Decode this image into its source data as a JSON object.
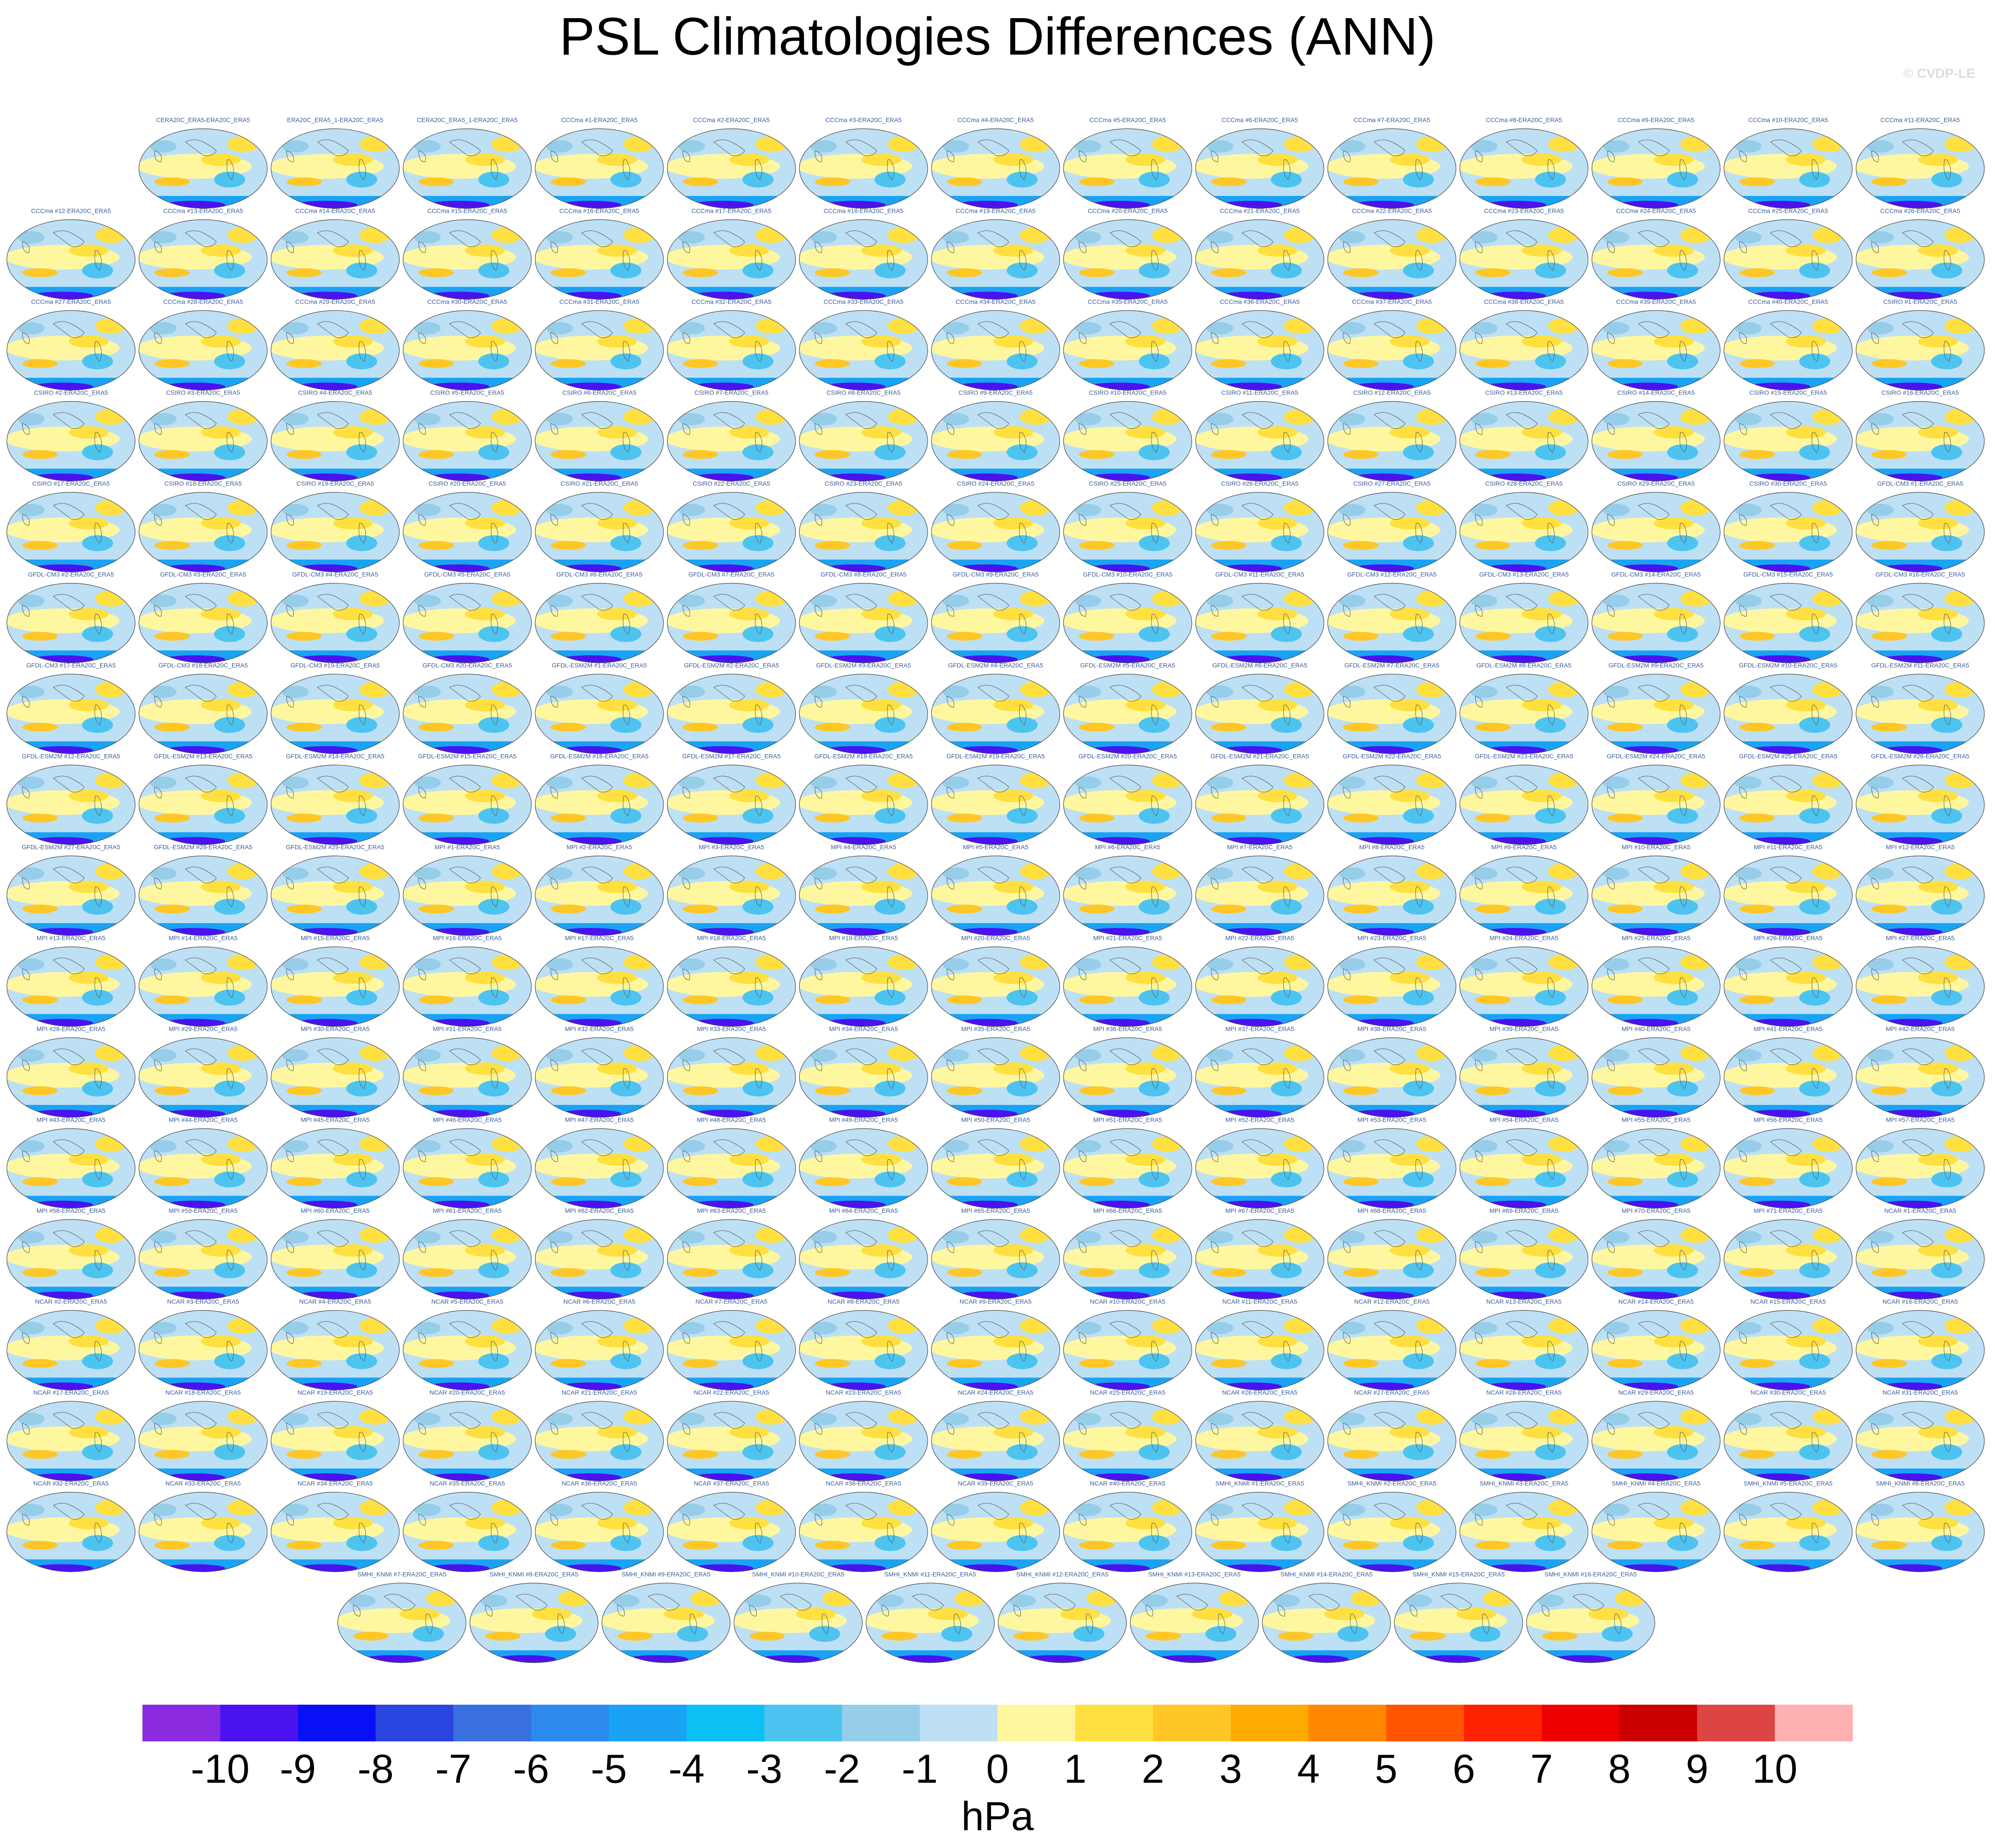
{
  "title": "PSL Climatologies Differences (ANN)",
  "watermark": "© CVDP-LE",
  "panels": [
    [
      "CERA20C_ERA5-ERA20C_ERA5",
      "ERA20C_ERA5_1-ERA20C_ERA5",
      "CERA20C_ERA5_1-ERA20C_ERA5",
      "CCCma #1-ERA20C_ERA5",
      "CCCma #2-ERA20C_ERA5",
      "CCCma #3-ERA20C_ERA5",
      "CCCma #4-ERA20C_ERA5",
      "CCCma #5-ERA20C_ERA5",
      "CCCma #6-ERA20C_ERA5",
      "CCCma #7-ERA20C_ERA5",
      "CCCma #8-ERA20C_ERA5",
      "CCCma #9-ERA20C_ERA5",
      "CCCma #10-ERA20C_ERA5",
      "CCCma #11-ERA20C_ERA5"
    ],
    [
      "CCCma #12-ERA20C_ERA5",
      "CCCma #13-ERA20C_ERA5",
      "CCCma #14-ERA20C_ERA5",
      "CCCma #15-ERA20C_ERA5",
      "CCCma #16-ERA20C_ERA5",
      "CCCma #17-ERA20C_ERA5",
      "CCCma #18-ERA20C_ERA5",
      "CCCma #19-ERA20C_ERA5",
      "CCCma #20-ERA20C_ERA5",
      "CCCma #21-ERA20C_ERA5",
      "CCCma #22-ERA20C_ERA5",
      "CCCma #23-ERA20C_ERA5",
      "CCCma #24-ERA20C_ERA5",
      "CCCma #25-ERA20C_ERA5",
      "CCCma #26-ERA20C_ERA5"
    ],
    [
      "CCCma #27-ERA20C_ERA5",
      "CCCma #28-ERA20C_ERA5",
      "CCCma #29-ERA20C_ERA5",
      "CCCma #30-ERA20C_ERA5",
      "CCCma #31-ERA20C_ERA5",
      "CCCma #32-ERA20C_ERA5",
      "CCCma #33-ERA20C_ERA5",
      "CCCma #34-ERA20C_ERA5",
      "CCCma #35-ERA20C_ERA5",
      "CCCma #36-ERA20C_ERA5",
      "CCCma #37-ERA20C_ERA5",
      "CCCma #38-ERA20C_ERA5",
      "CCCma #39-ERA20C_ERA5",
      "CCCma #40-ERA20C_ERA5",
      "CSIRO #1-ERA20C_ERA5"
    ],
    [
      "CSIRO #2-ERA20C_ERA5",
      "CSIRO #3-ERA20C_ERA5",
      "CSIRO #4-ERA20C_ERA5",
      "CSIRO #5-ERA20C_ERA5",
      "CSIRO #6-ERA20C_ERA5",
      "CSIRO #7-ERA20C_ERA5",
      "CSIRO #8-ERA20C_ERA5",
      "CSIRO #9-ERA20C_ERA5",
      "CSIRO #10-ERA20C_ERA5",
      "CSIRO #11-ERA20C_ERA5",
      "CSIRO #12-ERA20C_ERA5",
      "CSIRO #13-ERA20C_ERA5",
      "CSIRO #14-ERA20C_ERA5",
      "CSIRO #15-ERA20C_ERA5",
      "CSIRO #16-ERA20C_ERA5"
    ],
    [
      "CSIRO #17-ERA20C_ERA5",
      "CSIRO #18-ERA20C_ERA5",
      "CSIRO #19-ERA20C_ERA5",
      "CSIRO #20-ERA20C_ERA5",
      "CSIRO #21-ERA20C_ERA5",
      "CSIRO #22-ERA20C_ERA5",
      "CSIRO #23-ERA20C_ERA5",
      "CSIRO #24-ERA20C_ERA5",
      "CSIRO #25-ERA20C_ERA5",
      "CSIRO #26-ERA20C_ERA5",
      "CSIRO #27-ERA20C_ERA5",
      "CSIRO #28-ERA20C_ERA5",
      "CSIRO #29-ERA20C_ERA5",
      "CSIRO #30-ERA20C_ERA5",
      "GFDL-CM3 #1-ERA20C_ERA5"
    ],
    [
      "GFDL-CM3 #2-ERA20C_ERA5",
      "GFDL-CM3 #3-ERA20C_ERA5",
      "GFDL-CM3 #4-ERA20C_ERA5",
      "GFDL-CM3 #5-ERA20C_ERA5",
      "GFDL-CM3 #6-ERA20C_ERA5",
      "GFDL-CM3 #7-ERA20C_ERA5",
      "GFDL-CM3 #8-ERA20C_ERA5",
      "GFDL-CM3 #9-ERA20C_ERA5",
      "GFDL-CM3 #10-ERA20C_ERA5",
      "GFDL-CM3 #11-ERA20C_ERA5",
      "GFDL-CM3 #12-ERA20C_ERA5",
      "GFDL-CM3 #13-ERA20C_ERA5",
      "GFDL-CM3 #14-ERA20C_ERA5",
      "GFDL-CM3 #15-ERA20C_ERA5",
      "GFDL-CM3 #16-ERA20C_ERA5"
    ],
    [
      "GFDL-CM3 #17-ERA20C_ERA5",
      "GFDL-CM3 #18-ERA20C_ERA5",
      "GFDL-CM3 #19-ERA20C_ERA5",
      "GFDL-CM3 #20-ERA20C_ERA5",
      "GFDL-ESM2M #1-ERA20C_ERA5",
      "GFDL-ESM2M #2-ERA20C_ERA5",
      "GFDL-ESM2M #3-ERA20C_ERA5",
      "GFDL-ESM2M #4-ERA20C_ERA5",
      "GFDL-ESM2M #5-ERA20C_ERA5",
      "GFDL-ESM2M #6-ERA20C_ERA5",
      "GFDL-ESM2M #7-ERA20C_ERA5",
      "GFDL-ESM2M #8-ERA20C_ERA5",
      "GFDL-ESM2M #9-ERA20C_ERA5",
      "GFDL-ESM2M #10-ERA20C_ERA5",
      "GFDL-ESM2M #11-ERA20C_ERA5"
    ],
    [
      "GFDL-ESM2M #12-ERA20C_ERA5",
      "GFDL-ESM2M #13-ERA20C_ERA5",
      "GFDL-ESM2M #14-ERA20C_ERA5",
      "GFDL-ESM2M #15-ERA20C_ERA5",
      "GFDL-ESM2M #16-ERA20C_ERA5",
      "GFDL-ESM2M #17-ERA20C_ERA5",
      "GFDL-ESM2M #18-ERA20C_ERA5",
      "GFDL-ESM2M #19-ERA20C_ERA5",
      "GFDL-ESM2M #20-ERA20C_ERA5",
      "GFDL-ESM2M #21-ERA20C_ERA5",
      "GFDL-ESM2M #22-ERA20C_ERA5",
      "GFDL-ESM2M #23-ERA20C_ERA5",
      "GFDL-ESM2M #24-ERA20C_ERA5",
      "GFDL-ESM2M #25-ERA20C_ERA5",
      "GFDL-ESM2M #26-ERA20C_ERA5"
    ],
    [
      "GFDL-ESM2M #27-ERA20C_ERA5",
      "GFDL-ESM2M #28-ERA20C_ERA5",
      "GFDL-ESM2M #29-ERA20C_ERA5",
      "MPI #1-ERA20C_ERA5",
      "MPI #2-ERA20C_ERA5",
      "MPI #3-ERA20C_ERA5",
      "MPI #4-ERA20C_ERA5",
      "MPI #5-ERA20C_ERA5",
      "MPI #6-ERA20C_ERA5",
      "MPI #7-ERA20C_ERA5",
      "MPI #8-ERA20C_ERA5",
      "MPI #9-ERA20C_ERA5",
      "MPI #10-ERA20C_ERA5",
      "MPI #11-ERA20C_ERA5",
      "MPI #12-ERA20C_ERA5"
    ],
    [
      "MPI #13-ERA20C_ERA5",
      "MPI #14-ERA20C_ERA5",
      "MPI #15-ERA20C_ERA5",
      "MPI #16-ERA20C_ERA5",
      "MPI #17-ERA20C_ERA5",
      "MPI #18-ERA20C_ERA5",
      "MPI #19-ERA20C_ERA5",
      "MPI #20-ERA20C_ERA5",
      "MPI #21-ERA20C_ERA5",
      "MPI #22-ERA20C_ERA5",
      "MPI #23-ERA20C_ERA5",
      "MPI #24-ERA20C_ERA5",
      "MPI #25-ERA20C_ERA5",
      "MPI #26-ERA20C_ERA5",
      "MPI #27-ERA20C_ERA5"
    ],
    [
      "MPI #28-ERA20C_ERA5",
      "MPI #29-ERA20C_ERA5",
      "MPI #30-ERA20C_ERA5",
      "MPI #31-ERA20C_ERA5",
      "MPI #32-ERA20C_ERA5",
      "MPI #33-ERA20C_ERA5",
      "MPI #34-ERA20C_ERA5",
      "MPI #35-ERA20C_ERA5",
      "MPI #36-ERA20C_ERA5",
      "MPI #37-ERA20C_ERA5",
      "MPI #38-ERA20C_ERA5",
      "MPI #39-ERA20C_ERA5",
      "MPI #40-ERA20C_ERA5",
      "MPI #41-ERA20C_ERA5",
      "MPI #42-ERA20C_ERA5"
    ],
    [
      "MPI #43-ERA20C_ERA5",
      "MPI #44-ERA20C_ERA5",
      "MPI #45-ERA20C_ERA5",
      "MPI #46-ERA20C_ERA5",
      "MPI #47-ERA20C_ERA5",
      "MPI #48-ERA20C_ERA5",
      "MPI #49-ERA20C_ERA5",
      "MPI #50-ERA20C_ERA5",
      "MPI #51-ERA20C_ERA5",
      "MPI #52-ERA20C_ERA5",
      "MPI #53-ERA20C_ERA5",
      "MPI #54-ERA20C_ERA5",
      "MPI #55-ERA20C_ERA5",
      "MPI #56-ERA20C_ERA5",
      "MPI #57-ERA20C_ERA5"
    ],
    [
      "MPI #58-ERA20C_ERA5",
      "MPI #59-ERA20C_ERA5",
      "MPI #60-ERA20C_ERA5",
      "MPI #61-ERA20C_ERA5",
      "MPI #62-ERA20C_ERA5",
      "MPI #63-ERA20C_ERA5",
      "MPI #64-ERA20C_ERA5",
      "MPI #65-ERA20C_ERA5",
      "MPI #66-ERA20C_ERA5",
      "MPI #67-ERA20C_ERA5",
      "MPI #68-ERA20C_ERA5",
      "MPI #69-ERA20C_ERA5",
      "MPI #70-ERA20C_ERA5",
      "MPI #71-ERA20C_ERA5",
      "NCAR #1-ERA20C_ERA5"
    ],
    [
      "NCAR #2-ERA20C_ERA5",
      "NCAR #3-ERA20C_ERA5",
      "NCAR #4-ERA20C_ERA5",
      "NCAR #5-ERA20C_ERA5",
      "NCAR #6-ERA20C_ERA5",
      "NCAR #7-ERA20C_ERA5",
      "NCAR #8-ERA20C_ERA5",
      "NCAR #9-ERA20C_ERA5",
      "NCAR #10-ERA20C_ERA5",
      "NCAR #11-ERA20C_ERA5",
      "NCAR #12-ERA20C_ERA5",
      "NCAR #13-ERA20C_ERA5",
      "NCAR #14-ERA20C_ERA5",
      "NCAR #15-ERA20C_ERA5",
      "NCAR #16-ERA20C_ERA5"
    ],
    [
      "NCAR #17-ERA20C_ERA5",
      "NCAR #18-ERA20C_ERA5",
      "NCAR #19-ERA20C_ERA5",
      "NCAR #20-ERA20C_ERA5",
      "NCAR #21-ERA20C_ERA5",
      "NCAR #22-ERA20C_ERA5",
      "NCAR #23-ERA20C_ERA5",
      "NCAR #24-ERA20C_ERA5",
      "NCAR #25-ERA20C_ERA5",
      "NCAR #26-ERA20C_ERA5",
      "NCAR #27-ERA20C_ERA5",
      "NCAR #28-ERA20C_ERA5",
      "NCAR #29-ERA20C_ERA5",
      "NCAR #30-ERA20C_ERA5",
      "NCAR #31-ERA20C_ERA5"
    ],
    [
      "NCAR #32-ERA20C_ERA5",
      "NCAR #33-ERA20C_ERA5",
      "NCAR #34-ERA20C_ERA5",
      "NCAR #35-ERA20C_ERA5",
      "NCAR #36-ERA20C_ERA5",
      "NCAR #37-ERA20C_ERA5",
      "NCAR #38-ERA20C_ERA5",
      "NCAR #39-ERA20C_ERA5",
      "NCAR #40-ERA20C_ERA5",
      "SMHI_KNMI #1-ERA20C_ERA5",
      "SMHI_KNMI #2-ERA20C_ERA5",
      "SMHI_KNMI #3-ERA20C_ERA5",
      "SMHI_KNMI #4-ERA20C_ERA5",
      "SMHI_KNMI #5-ERA20C_ERA5",
      "SMHI_KNMI #6-ERA20C_ERA5"
    ],
    [
      "SMHI_KNMI #7-ERA20C_ERA5",
      "SMHI_KNMI #8-ERA20C_ERA5",
      "SMHI_KNMI #9-ERA20C_ERA5",
      "SMHI_KNMI #10-ERA20C_ERA5",
      "SMHI_KNMI #11-ERA20C_ERA5",
      "SMHI_KNMI #12-ERA20C_ERA5",
      "SMHI_KNMI #13-ERA20C_ERA5",
      "SMHI_KNMI #14-ERA20C_ERA5",
      "SMHI_KNMI #15-ERA20C_ERA5",
      "SMHI_KNMI #16-ERA20C_ERA5"
    ]
  ],
  "colorbar": {
    "colors": [
      "#8a2be2",
      "#4b12f0",
      "#0a10f5",
      "#2a45e0",
      "#3a6fe0",
      "#2c8aee",
      "#1aa3f5",
      "#0ac0f5",
      "#4dc3f0",
      "#96cde8",
      "#bde0f5",
      "#fff7a0",
      "#ffe040",
      "#ffc726",
      "#ffaa00",
      "#ff8800",
      "#ff5500",
      "#ff2200",
      "#ee0000",
      "#cc0000",
      "#dd4444",
      "#ffb0b0"
    ],
    "ticks": [
      -10,
      -9,
      -8,
      -7,
      -6,
      -5,
      -4,
      -3,
      -2,
      -1,
      0,
      1,
      2,
      3,
      4,
      5,
      6,
      7,
      8,
      9,
      10
    ],
    "label": "hPa"
  }
}
